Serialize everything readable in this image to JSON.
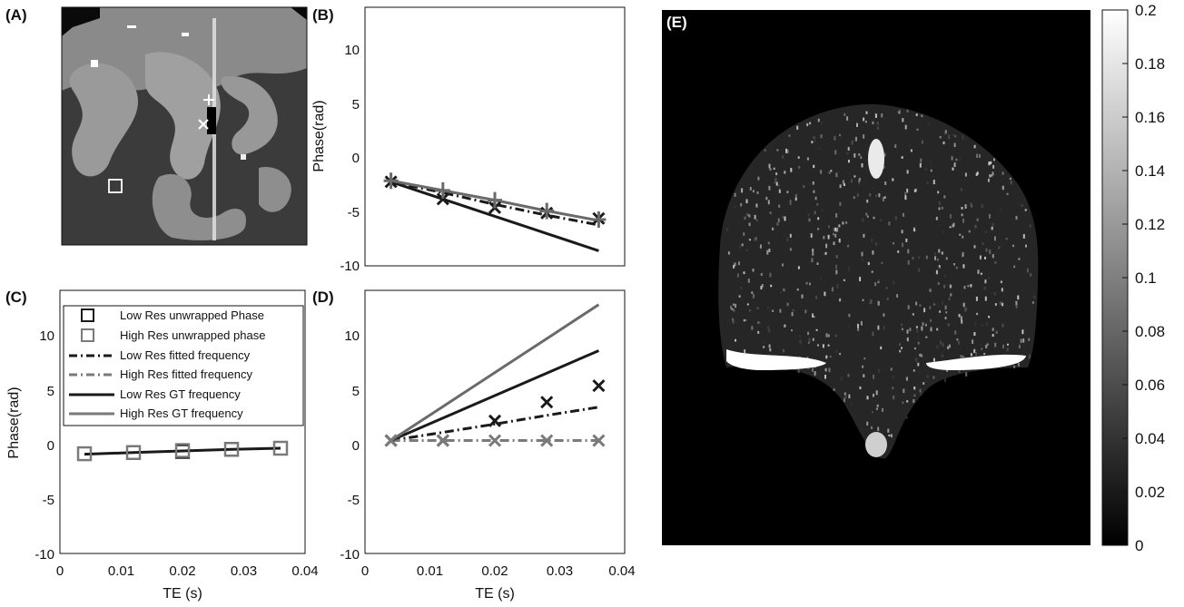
{
  "panels": {
    "A": {
      "label": "(A)"
    },
    "B": {
      "label": "(B)"
    },
    "C": {
      "label": "(C)"
    },
    "D": {
      "label": "(D)"
    },
    "E": {
      "label": "(E)"
    }
  },
  "chart_data": [
    {
      "panel": "B",
      "type": "line",
      "title": "",
      "xlabel": "",
      "ylabel": "Phase(rad)",
      "xlim": [
        0,
        0.04
      ],
      "ylim": [
        -10,
        14
      ],
      "yticks": [
        "10",
        "5",
        "0",
        "-5",
        "-10"
      ],
      "x": [
        0.004,
        0.012,
        0.02,
        0.028,
        0.036
      ],
      "series": [
        {
          "name": "Low Res unwrapped Phase",
          "style": "x-marker",
          "color": "#1a1a1a",
          "values": [
            -2.2,
            -3.8,
            -4.6,
            -5.1,
            -5.6
          ]
        },
        {
          "name": "High Res unwrapped phase",
          "style": "plus-marker",
          "color": "#6a6a6a",
          "values": [
            -2.1,
            -3.0,
            -3.9,
            -4.9,
            -5.7
          ]
        },
        {
          "name": "Low Res fitted frequency",
          "style": "dashdot",
          "color": "#1a1a1a",
          "values": [
            -2.2,
            -3.2,
            -4.3,
            -5.3,
            -6.2
          ]
        },
        {
          "name": "Low Res GT frequency",
          "style": "solid",
          "color": "#1a1a1a",
          "values": [
            -2.2,
            -3.8,
            -5.4,
            -7.0,
            -8.6
          ]
        },
        {
          "name": "High Res  GT frequency",
          "style": "solid",
          "color": "#6a6a6a",
          "values": [
            -2.1,
            -3.0,
            -3.9,
            -4.9,
            -5.8
          ]
        }
      ]
    },
    {
      "panel": "C",
      "type": "line",
      "title": "",
      "xlabel": "TE (s)",
      "ylabel": "Phase(rad)",
      "xlim": [
        0,
        0.04
      ],
      "ylim": [
        -10,
        14
      ],
      "xticks": [
        "0",
        "0.01",
        "0.02",
        "0.03",
        "0.04"
      ],
      "yticks": [
        "10",
        "5",
        "0",
        "-5",
        "-10"
      ],
      "x": [
        0.004,
        0.012,
        0.02,
        0.028,
        0.036
      ],
      "legend": [
        {
          "label": "Low Res unwrapped Phase",
          "style": "square",
          "color": "#1a1a1a"
        },
        {
          "label": "High Res unwrapped phase",
          "style": "square",
          "color": "#7a7a7a"
        },
        {
          "label": "Low Res fitted frequency",
          "style": "dashdot",
          "color": "#1a1a1a"
        },
        {
          "label": "High Res fitted frequency",
          "style": "dashdot",
          "color": "#7a7a7a"
        },
        {
          "label": "Low Res GT frequency",
          "style": "solid",
          "color": "#1a1a1a"
        },
        {
          "label": "High Res  GT frequency",
          "style": "solid",
          "color": "#7a7a7a"
        }
      ],
      "series": [
        {
          "name": "Low Res unwrapped Phase",
          "style": "square-marker",
          "color": "#1a1a1a",
          "values": [
            -0.9,
            -0.8,
            -0.7,
            -0.5,
            -0.4
          ]
        },
        {
          "name": "High Res unwrapped phase",
          "style": "square-marker",
          "color": "#7a7a7a",
          "values": [
            -0.9,
            -0.8,
            -0.6,
            -0.5,
            -0.4
          ]
        },
        {
          "name": "Low Res GT frequency",
          "style": "solid",
          "color": "#1a1a1a",
          "values": [
            -0.95,
            -0.8,
            -0.65,
            -0.5,
            -0.4
          ]
        }
      ]
    },
    {
      "panel": "D",
      "type": "line",
      "title": "",
      "xlabel": "TE (s)",
      "ylabel": "",
      "xlim": [
        0,
        0.04
      ],
      "ylim": [
        -10,
        14
      ],
      "xticks": [
        "0",
        "0.01",
        "0.02",
        "0.03",
        "0.04"
      ],
      "yticks": [
        "10",
        "5",
        "0",
        "-5",
        "-10"
      ],
      "x": [
        0.004,
        0.012,
        0.02,
        0.028,
        0.036
      ],
      "series": [
        {
          "name": "Low Res unwrapped Phase",
          "style": "x-marker",
          "color": "#1a1a1a",
          "values": [
            0.3,
            0.3,
            2.1,
            3.8,
            5.3
          ]
        },
        {
          "name": "High Res unwrapped phase",
          "style": "x-marker",
          "color": "#7a7a7a",
          "values": [
            0.3,
            0.3,
            0.3,
            0.3,
            0.3
          ]
        },
        {
          "name": "Low Res fitted frequency",
          "style": "dashdot",
          "color": "#1a1a1a",
          "values": [
            0.3,
            1.05,
            1.8,
            2.6,
            3.35
          ]
        },
        {
          "name": "High Res fitted frequency",
          "style": "dashdot",
          "color": "#7a7a7a",
          "values": [
            0.3,
            0.3,
            0.3,
            0.3,
            0.3
          ]
        },
        {
          "name": "Low Res GT frequency",
          "style": "solid",
          "color": "#1a1a1a",
          "values": [
            0.3,
            2.35,
            4.4,
            6.45,
            8.5
          ]
        },
        {
          "name": "High Res  GT frequency",
          "style": "solid",
          "color": "#6a6a6a",
          "values": [
            0.3,
            3.4,
            6.5,
            9.6,
            12.7
          ]
        }
      ]
    },
    {
      "panel": "E",
      "type": "heatmap",
      "title": "",
      "colormap": "gray",
      "colorbar_range": [
        0,
        0.2
      ],
      "colorbar_ticks": [
        "0.2",
        "0.18",
        "0.16",
        "0.14",
        "0.12",
        "0.1",
        "0.08",
        "0.06",
        "0.04",
        "0.02",
        "0"
      ]
    }
  ]
}
